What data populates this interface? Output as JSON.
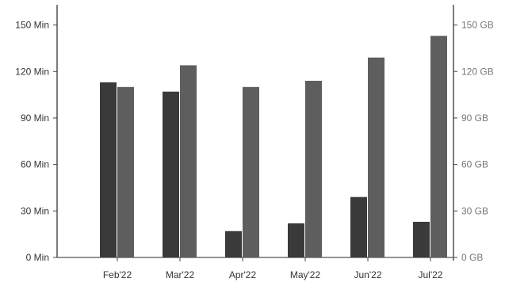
{
  "chart_data": {
    "type": "bar",
    "categories": [
      "Feb'22",
      "Mar'22",
      "Apr'22",
      "May'22",
      "Jun'22",
      "Jul'22"
    ],
    "series": [
      {
        "axis": "left",
        "unit": "Min",
        "values": [
          113,
          107,
          17,
          22,
          39,
          23
        ]
      },
      {
        "axis": "right",
        "unit": "GB",
        "values": [
          110,
          124,
          110,
          114,
          129,
          143
        ]
      }
    ],
    "y_left": {
      "ticks": [
        0,
        30,
        60,
        90,
        120,
        150
      ],
      "tick_labels": [
        "0 Min",
        "30 Min",
        "60 Min",
        "90 Min",
        "120 Min",
        "150 Min"
      ],
      "ylim": [
        0,
        160
      ]
    },
    "y_right": {
      "ticks": [
        0,
        30,
        60,
        90,
        120,
        150
      ],
      "tick_labels": [
        "0 GB",
        "30 GB",
        "60 GB",
        "90 GB",
        "120 GB",
        "150 GB"
      ],
      "ylim": [
        0,
        160
      ]
    },
    "colors": {
      "left_series": "#3a3a3a",
      "right_series": "#5e5e5e",
      "axis": "#444444"
    },
    "grid": false
  }
}
